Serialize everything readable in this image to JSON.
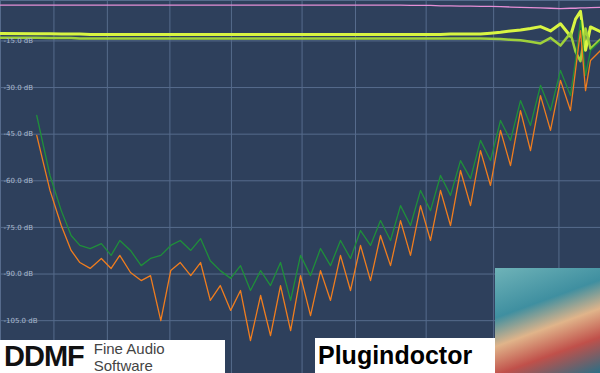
{
  "chart_data": {
    "type": "line",
    "x": [
      10,
      16,
      19,
      22,
      25,
      28,
      32,
      37,
      42,
      47,
      54,
      62,
      70,
      80,
      91,
      103,
      118,
      134,
      152,
      173,
      198,
      225,
      256,
      292,
      332,
      378,
      431,
      490,
      558,
      635,
      723,
      823,
      937,
      1067,
      1215,
      1383,
      1575,
      1793,
      2041,
      2324,
      2646,
      3012,
      3429,
      3904,
      4445,
      5060,
      5761,
      6559,
      7468,
      8502,
      9680,
      11020,
      12546,
      14284,
      16262,
      17360,
      18514,
      19770,
      21079,
      24000
    ],
    "series": [
      {
        "color": "#e58fd6",
        "values": [
          -3.5,
          -3.5,
          -3.5,
          -3.5,
          -3.5,
          -3.5,
          -3.5,
          -3.5,
          -3.5,
          -3.5,
          -3.5,
          -3.5,
          -3.5,
          -3.5,
          -3.5,
          -3.5,
          -3.5,
          -3.5,
          -3.5,
          -3.5,
          -3.5,
          -3.5,
          -3.5,
          -3.5,
          -3.5,
          -3.5,
          -3.5,
          -3.5,
          -3.5,
          -3.5,
          -3.5,
          -3.5,
          -3.5,
          -3.5,
          -3.5,
          -3.5,
          -3.5,
          -3.5,
          -3.6,
          -3.6,
          -3.6,
          -3.7,
          -3.7,
          -3.8,
          -3.8,
          -3.9,
          -3.9,
          -4.0,
          -4.1,
          -4.2,
          -4.3,
          -4.4,
          -4.5,
          -4.6,
          -4.5,
          -4.5,
          -4.4,
          -4.4,
          -4.3,
          -4.2
        ]
      },
      {
        "color": "#d9f542",
        "values": [
          -12.6,
          -12.7,
          -12.7,
          -12.8,
          -12.8,
          -12.8,
          -12.9,
          -12.9,
          -12.9,
          -12.9,
          -12.9,
          -12.9,
          -12.9,
          -12.9,
          -12.9,
          -12.9,
          -12.9,
          -12.9,
          -12.9,
          -12.9,
          -12.9,
          -12.9,
          -12.9,
          -12.9,
          -12.9,
          -12.9,
          -12.9,
          -12.9,
          -12.9,
          -12.9,
          -12.9,
          -12.9,
          -12.9,
          -12.9,
          -12.9,
          -12.9,
          -12.9,
          -12.9,
          -12.9,
          -12.9,
          -12.9,
          -12.9,
          -12.8,
          -12.8,
          -12.8,
          -12.8,
          -12.5,
          -12.2,
          -11.8,
          -11.5,
          -11.0,
          -10.4,
          -11.8,
          -9.5,
          -13.5,
          -8.0,
          -5.5,
          -18.0,
          -10.5,
          -12.0
        ]
      },
      {
        "color": "#9fd13a",
        "values": [
          -14.0,
          -14.0,
          -14.1,
          -14.1,
          -14.1,
          -14.2,
          -14.2,
          -14.2,
          -14.2,
          -14.2,
          -14.2,
          -14.2,
          -14.2,
          -14.2,
          -14.2,
          -14.2,
          -14.2,
          -14.2,
          -14.2,
          -14.2,
          -14.2,
          -14.2,
          -14.2,
          -14.2,
          -14.2,
          -14.2,
          -14.2,
          -14.2,
          -14.2,
          -14.2,
          -14.2,
          -14.2,
          -14.2,
          -14.2,
          -14.2,
          -14.2,
          -14.2,
          -14.2,
          -14.2,
          -14.2,
          -14.2,
          -14.2,
          -14.2,
          -14.2,
          -14.2,
          -14.2,
          -14.3,
          -14.4,
          -14.6,
          -14.8,
          -15.3,
          -15.8,
          -14.0,
          -16.5,
          -12.5,
          -18.5,
          -21.5,
          -11.0,
          -17.5,
          -14.5
        ]
      },
      {
        "color": "#1f8f3a",
        "values": [
          null,
          -39.0,
          -58.3,
          -69.6,
          -77.6,
          -80.8,
          -81.8,
          -80.2,
          -84.0,
          -79.2,
          -82.4,
          -87.3,
          -85.0,
          -84.0,
          -80.8,
          -79.2,
          -82.4,
          -78.6,
          -85.7,
          -88.9,
          -91.4,
          -87.3,
          -95.3,
          -88.9,
          -93.7,
          -86.3,
          -98.5,
          -84.0,
          -90.5,
          -81.8,
          -87.3,
          -79.2,
          -85.0,
          -76.0,
          -80.8,
          -72.8,
          -79.2,
          -68.0,
          -74.4,
          -63.1,
          -69.6,
          -58.3,
          -64.7,
          -53.5,
          -59.3,
          -47.0,
          -53.5,
          -40.6,
          -47.0,
          -34.2,
          -42.2,
          -29.3,
          -37.4,
          -24.5,
          -32.6,
          -21.3,
          -8.4,
          -26.1,
          -18.1,
          -14.9
        ]
      },
      {
        "color": "#f07d1e",
        "values": [
          null,
          -45.4,
          -63.1,
          -74.4,
          -82.4,
          -86.3,
          -88.2,
          -85.0,
          -88.2,
          -84.0,
          -89.5,
          -92.1,
          -90.5,
          -105.0,
          -88.9,
          -86.3,
          -90.5,
          -86.3,
          -98.5,
          -93.7,
          -101.7,
          -95.3,
          -111.4,
          -96.9,
          -109.8,
          -93.7,
          -108.2,
          -90.5,
          -103.4,
          -88.9,
          -98.5,
          -84.0,
          -95.3,
          -80.8,
          -92.1,
          -77.6,
          -87.3,
          -72.8,
          -84.0,
          -68.0,
          -79.2,
          -63.1,
          -74.4,
          -56.7,
          -68.0,
          -50.3,
          -61.5,
          -43.8,
          -55.1,
          -37.4,
          -50.3,
          -32.6,
          -43.8,
          -27.7,
          -37.4,
          -24.5,
          -11.7,
          -31.0,
          -21.3,
          -18.1
        ]
      }
    ],
    "xlim": [
      10,
      24000
    ],
    "ylim": [
      -122,
      -2
    ],
    "xticks": [
      20,
      40,
      90,
      200,
      500,
      1000,
      2500,
      6000,
      14000
    ],
    "yticks": [
      {
        "value": -15,
        "label": "-15.0 dB"
      },
      {
        "value": -30,
        "label": "-30.0 dB"
      },
      {
        "value": -45,
        "label": "-45.0 dB"
      },
      {
        "value": -60,
        "label": "-60.0 dB"
      },
      {
        "value": -75,
        "label": "-75.0 dB"
      },
      {
        "value": -90,
        "label": "-90.0 dB"
      },
      {
        "value": -105,
        "label": "-105.0 dB"
      }
    ],
    "log": "x",
    "grid": true,
    "tick_labels": "y",
    "annotations": [
      "DDMF",
      "Fine Audio Software",
      "Plugindoctor"
    ]
  }
}
